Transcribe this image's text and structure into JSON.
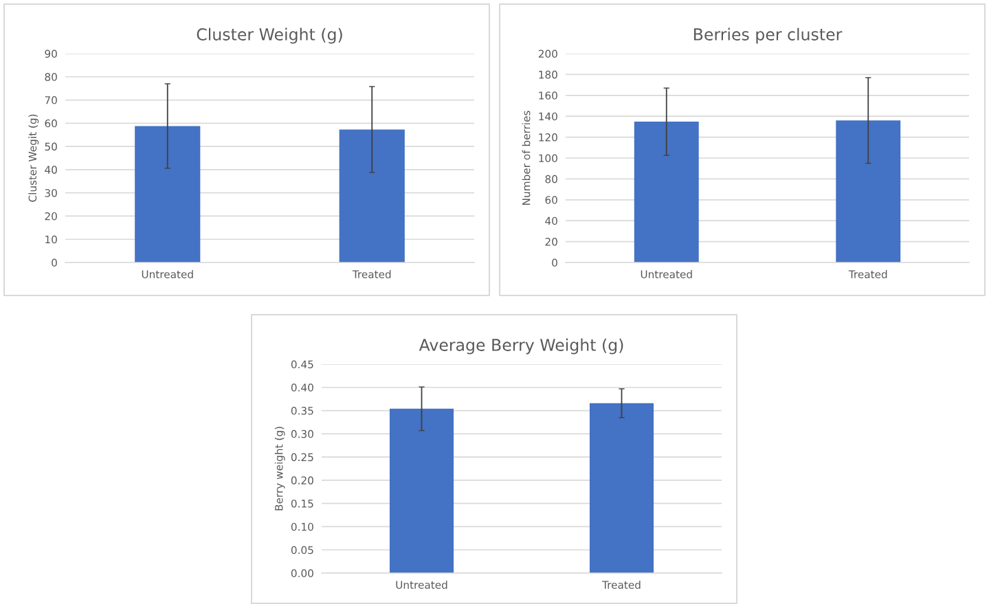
{
  "chart_data": [
    {
      "type": "bar",
      "title": "Cluster Weight (g)",
      "ylabel": "Cluster Wegit (g)",
      "categories": [
        "Untreated",
        "Treated"
      ],
      "series": [
        {
          "color": "#4472c4",
          "values": [
            58.8,
            57.3
          ],
          "errors": [
            18.2,
            18.5
          ]
        }
      ],
      "ylim": [
        0,
        90
      ],
      "yticks": [
        0,
        10,
        20,
        30,
        40,
        50,
        60,
        70,
        80,
        90
      ],
      "grid": "y"
    },
    {
      "type": "bar",
      "title": "Berries per cluster",
      "ylabel": "Number of berries",
      "categories": [
        "Untreated",
        "Treated"
      ],
      "series": [
        {
          "color": "#4472c4",
          "values": [
            134.8,
            136
          ],
          "errors": [
            32.2,
            41
          ]
        }
      ],
      "ylim": [
        0,
        200
      ],
      "yticks": [
        0,
        20,
        40,
        60,
        80,
        100,
        120,
        140,
        160,
        180,
        200
      ],
      "grid": "y"
    },
    {
      "type": "bar",
      "title": "Average Berry Weight (g)",
      "ylabel": "Berry weight (g)",
      "categories": [
        "Untreated",
        "Treated"
      ],
      "series": [
        {
          "color": "#4472c4",
          "values": [
            0.354,
            0.366
          ],
          "errors": [
            0.047,
            0.031
          ]
        }
      ],
      "ylim": [
        0,
        0.45
      ],
      "yticks": [
        {
          "value": 0,
          "label": "0.00"
        },
        {
          "value": 0.05,
          "label": "0.05"
        },
        {
          "value": 0.1,
          "label": "0.10"
        },
        {
          "value": 0.15,
          "label": "0.15"
        },
        {
          "value": 0.2,
          "label": "0.20"
        },
        {
          "value": 0.25,
          "label": "0.25"
        },
        {
          "value": 0.3,
          "label": "0.30"
        },
        {
          "value": 0.35,
          "label": "0.35"
        },
        {
          "value": 0.4,
          "label": "0.40"
        },
        {
          "value": 0.45,
          "label": "0.45"
        }
      ],
      "grid": "y"
    }
  ]
}
